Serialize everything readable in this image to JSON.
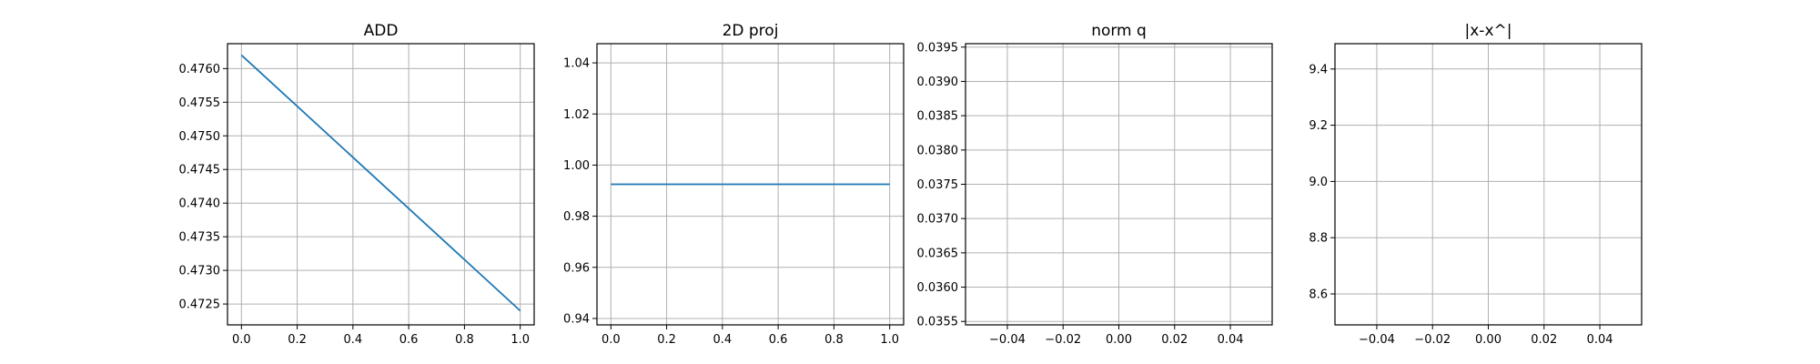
{
  "chart_data": [
    {
      "type": "line",
      "title": "ADD",
      "xlim": [
        -0.05,
        1.05
      ],
      "ylim": [
        0.47219,
        0.47637
      ],
      "xticks": [
        0.0,
        0.2,
        0.4,
        0.6,
        0.8,
        1.0
      ],
      "xtick_labels": [
        "0.0",
        "0.2",
        "0.4",
        "0.6",
        "0.8",
        "1.0"
      ],
      "yticks": [
        0.4725,
        0.473,
        0.4735,
        0.474,
        0.4745,
        0.475,
        0.4755,
        0.476
      ],
      "ytick_labels": [
        "0.4725",
        "0.4730",
        "0.4735",
        "0.4740",
        "0.4745",
        "0.4750",
        "0.4755",
        "0.4760"
      ],
      "grid": true,
      "series": [
        {
          "x": [
            0,
            1
          ],
          "y": [
            0.4762,
            0.4724
          ],
          "color": "#1f77b4"
        }
      ]
    },
    {
      "type": "line",
      "title": "2D proj",
      "xlim": [
        -0.05,
        1.05
      ],
      "ylim": [
        0.9375,
        1.0475
      ],
      "xticks": [
        0.0,
        0.2,
        0.4,
        0.6,
        0.8,
        1.0
      ],
      "xtick_labels": [
        "0.0",
        "0.2",
        "0.4",
        "0.6",
        "0.8",
        "1.0"
      ],
      "yticks": [
        0.94,
        0.96,
        0.98,
        1.0,
        1.02,
        1.04
      ],
      "ytick_labels": [
        "0.94",
        "0.96",
        "0.98",
        "1.00",
        "1.02",
        "1.04"
      ],
      "grid": true,
      "series": [
        {
          "x": [
            0,
            1
          ],
          "y": [
            0.9925,
            0.9925
          ],
          "color": "#1f77b4"
        }
      ]
    },
    {
      "type": "line",
      "title": "norm q",
      "xlim": [
        -0.055,
        0.055
      ],
      "ylim": [
        0.03545,
        0.03955
      ],
      "xticks": [
        -0.04,
        -0.02,
        0.0,
        0.02,
        0.04
      ],
      "xtick_labels": [
        "−0.04",
        "−0.02",
        "0.00",
        "0.02",
        "0.04"
      ],
      "yticks": [
        0.0355,
        0.036,
        0.0365,
        0.037,
        0.0375,
        0.038,
        0.0385,
        0.039,
        0.0395
      ],
      "ytick_labels": [
        "0.0355",
        "0.0360",
        "0.0365",
        "0.0370",
        "0.0375",
        "0.0380",
        "0.0385",
        "0.0390",
        "0.0395"
      ],
      "grid": true,
      "series": []
    },
    {
      "type": "line",
      "title": "|x-x^|",
      "xlim": [
        -0.055,
        0.055
      ],
      "ylim": [
        8.49,
        9.49
      ],
      "xticks": [
        -0.04,
        -0.02,
        0.0,
        0.02,
        0.04
      ],
      "xtick_labels": [
        "−0.04",
        "−0.02",
        "0.00",
        "0.02",
        "0.04"
      ],
      "yticks": [
        8.6,
        8.8,
        9.0,
        9.2,
        9.4
      ],
      "ytick_labels": [
        "8.6",
        "8.8",
        "9.0",
        "9.2",
        "9.4"
      ],
      "grid": true,
      "series": []
    }
  ]
}
